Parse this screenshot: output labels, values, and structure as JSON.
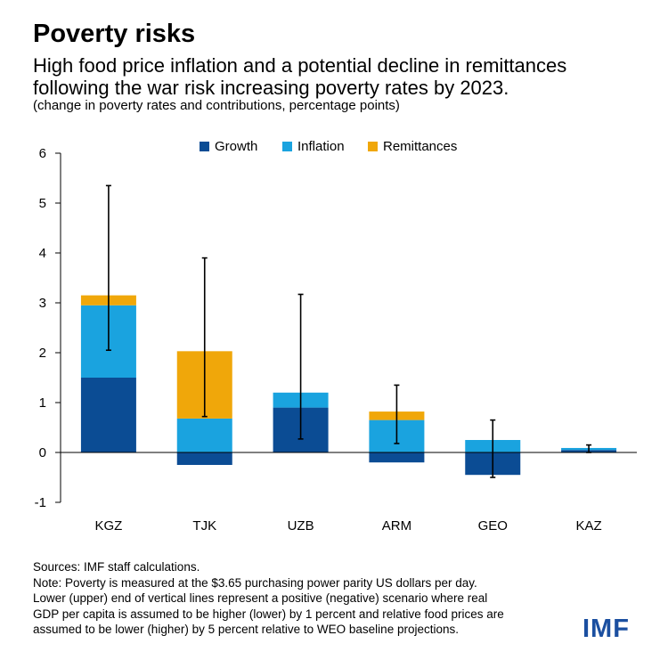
{
  "title": "Poverty risks",
  "subtitle": "High food price inflation and a potential decline in remittances following the war risk increasing poverty rates by 2023.",
  "units": "(change in poverty rates and contributions, percentage points)",
  "legend": [
    {
      "name": "Growth",
      "color": "#0b4c94"
    },
    {
      "name": "Inflation",
      "color": "#1aa3df"
    },
    {
      "name": "Remittances",
      "color": "#f0a70a"
    }
  ],
  "chart_data": {
    "type": "bar",
    "stacked": true,
    "categories": [
      "KGZ",
      "TJK",
      "UZB",
      "ARM",
      "GEO",
      "KAZ"
    ],
    "series": [
      {
        "name": "Growth",
        "color": "#0b4c94",
        "values": [
          1.5,
          -0.25,
          0.9,
          -0.2,
          -0.45,
          0.05
        ]
      },
      {
        "name": "Inflation",
        "color": "#1aa3df",
        "values": [
          1.45,
          0.68,
          0.3,
          0.65,
          0.25,
          0.04
        ]
      },
      {
        "name": "Remittances",
        "color": "#f0a70a",
        "values": [
          0.2,
          1.35,
          0.0,
          0.17,
          0.0,
          0.0
        ]
      }
    ],
    "error_ranges": [
      {
        "low": 2.05,
        "high": 5.35
      },
      {
        "low": 0.72,
        "high": 3.9
      },
      {
        "low": 0.27,
        "high": 3.17
      },
      {
        "low": 0.18,
        "high": 1.35
      },
      {
        "low": -0.5,
        "high": 0.65
      },
      {
        "low": 0.0,
        "high": 0.15
      }
    ],
    "ylim": [
      -1,
      6
    ],
    "yticks": [
      "-1",
      "0",
      "1",
      "2",
      "3",
      "4",
      "5",
      "6"
    ],
    "legend_position": "top"
  },
  "notes": [
    "Sources: IMF staff calculations.",
    "Note: Poverty is measured at the $3.65 purchasing power parity US dollars per day.",
    "Lower (upper) end of vertical lines represent a positive (negative) scenario where real",
    "GDP per capita is assumed to be higher (lower) by 1 percent and relative food prices are",
    "assumed to be lower (higher) by 5 percent relative to WEO baseline projections."
  ],
  "logo": "IMF"
}
